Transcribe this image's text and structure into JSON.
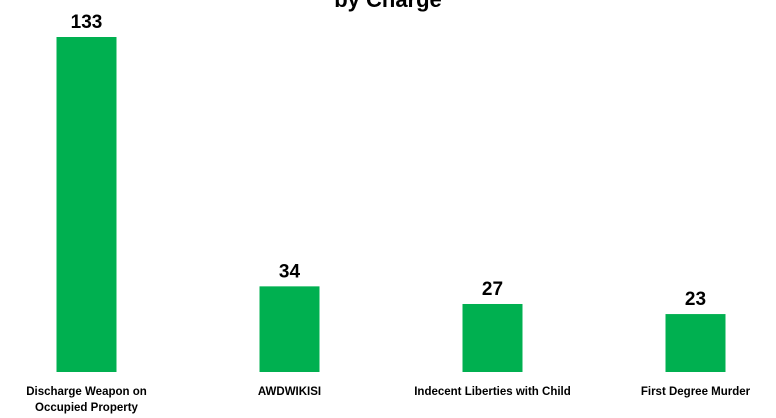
{
  "chart_data": {
    "type": "bar",
    "title": "by Charge",
    "categories": [
      "Discharge Weapon on Occupied Property",
      "AWDWIKISI",
      "Indecent Liberties with Child",
      "First Degree Murder"
    ],
    "category_lines": [
      [
        "Discharge Weapon on",
        "Occupied Property"
      ],
      [
        "AWDWIKISI"
      ],
      [
        "Indecent Liberties with Child"
      ],
      [
        "First Degree Murder"
      ]
    ],
    "values": [
      133,
      34,
      27,
      23
    ],
    "data_labels": [
      "133",
      "34",
      "27",
      "23"
    ],
    "ylim": [
      0,
      133
    ],
    "grid": false,
    "legend": "none",
    "colors": {
      "bar": "#00b050",
      "text": "#000000",
      "background": "#ffffff"
    }
  }
}
